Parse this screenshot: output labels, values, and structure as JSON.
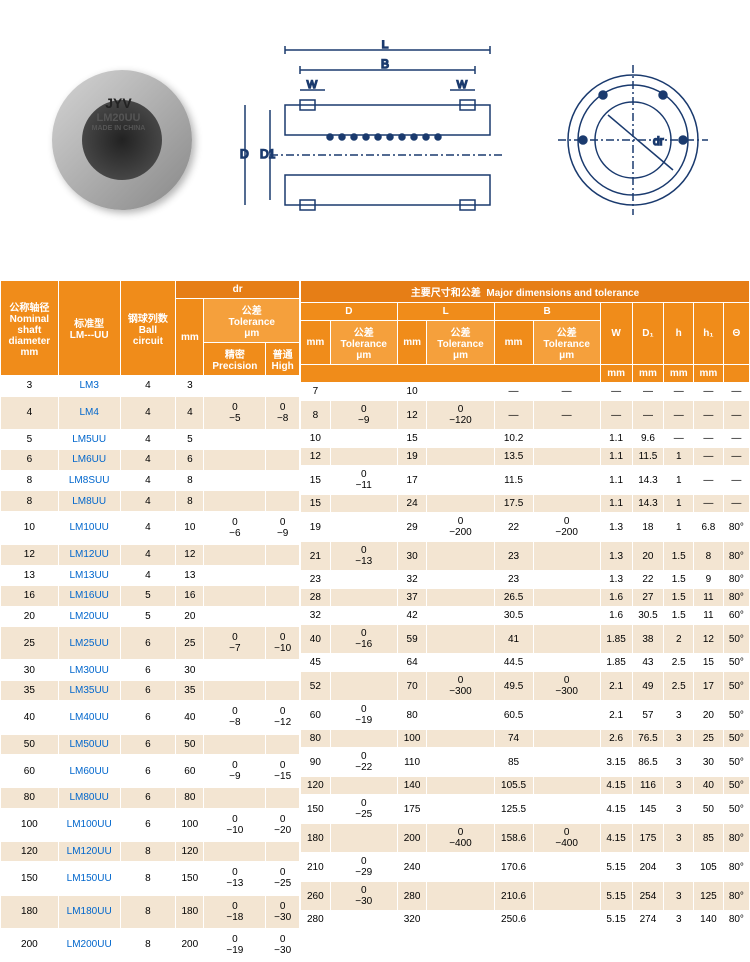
{
  "colors": {
    "header_orange": "#f08c1a",
    "header_orange2": "#e67e16",
    "header_orange3": "#f5a03c",
    "row_even": "#ffffff",
    "row_odd": "#f3e5d2",
    "text": "#333333",
    "link_blue": "#0066cc"
  },
  "product": {
    "brand": "JYV",
    "model": "LM20UU",
    "origin": "MADE IN CHINA"
  },
  "diagram_labels": {
    "L": "L",
    "B": "B",
    "W": "W",
    "D": "D",
    "D1": "D1",
    "dr": "dr"
  },
  "left_headers": {
    "col1_cn": "公称轴径",
    "col1_en1": "Nominal",
    "col1_en2": "shaft",
    "col1_en3": "diameter",
    "col1_unit": "mm",
    "col2_cn": "标准型",
    "col2_en": "LM---UU",
    "col3_cn": "钢球列数",
    "col3_en1": "Ball",
    "col3_en2": "circuit",
    "dr": "dr",
    "mm": "mm",
    "tolerance_cn": "公差",
    "tolerance_en": "Tolerance",
    "tolerance_unit": "μm",
    "precision_cn": "精密",
    "precision_en": "Precision",
    "high_cn": "普通",
    "high_en": "High"
  },
  "right_headers": {
    "title_cn": "主要尺寸和公差",
    "title_en": "Major dimensions and tolerance",
    "D": "D",
    "L": "L",
    "B": "B",
    "W": "W",
    "D1": "D₁",
    "h": "h",
    "h1": "h₁",
    "theta": "Θ",
    "mm": "mm",
    "tolerance_cn": "公差",
    "tolerance_en": "Tolerance",
    "tolerance_unit": "μm"
  },
  "rows": [
    {
      "d": "3",
      "model": "LM3",
      "ball": "4",
      "dr": "3",
      "prec": "",
      "high": "",
      "D": "7",
      "Dtol": "",
      "L": "10",
      "Ltol": "",
      "B": "—",
      "Btol": "—",
      "W": "—",
      "D1": "—",
      "h": "—",
      "h1": "—",
      "th": "—"
    },
    {
      "d": "4",
      "model": "LM4",
      "ball": "4",
      "dr": "4",
      "prec": "0\n−5",
      "high": "0\n−8",
      "D": "8",
      "Dtol": "0\n−9",
      "L": "12",
      "Ltol": "0\n−120",
      "B": "—",
      "Btol": "—",
      "W": "—",
      "D1": "—",
      "h": "—",
      "h1": "—",
      "th": "—"
    },
    {
      "d": "5",
      "model": "LM5UU",
      "ball": "4",
      "dr": "5",
      "prec": "",
      "high": "",
      "D": "10",
      "Dtol": "",
      "L": "15",
      "Ltol": "",
      "B": "10.2",
      "Btol": "",
      "W": "1.1",
      "D1": "9.6",
      "h": "—",
      "h1": "—",
      "th": "—"
    },
    {
      "d": "6",
      "model": "LM6UU",
      "ball": "4",
      "dr": "6",
      "prec": "",
      "high": "",
      "D": "12",
      "Dtol": "",
      "L": "19",
      "Ltol": "",
      "B": "13.5",
      "Btol": "",
      "W": "1.1",
      "D1": "11.5",
      "h": "1",
      "h1": "—",
      "th": "—"
    },
    {
      "d": "8",
      "model": "LM8SUU",
      "ball": "4",
      "dr": "8",
      "prec": "",
      "high": "",
      "D": "15",
      "Dtol": "0\n−11",
      "L": "17",
      "Ltol": "",
      "B": "11.5",
      "Btol": "",
      "W": "1.1",
      "D1": "14.3",
      "h": "1",
      "h1": "—",
      "th": "—"
    },
    {
      "d": "8",
      "model": "LM8UU",
      "ball": "4",
      "dr": "8",
      "prec": "",
      "high": "",
      "D": "15",
      "Dtol": "",
      "L": "24",
      "Ltol": "",
      "B": "17.5",
      "Btol": "",
      "W": "1.1",
      "D1": "14.3",
      "h": "1",
      "h1": "—",
      "th": "—"
    },
    {
      "d": "10",
      "model": "LM10UU",
      "ball": "4",
      "dr": "10",
      "prec": "0\n−6",
      "high": "0\n−9",
      "D": "19",
      "Dtol": "",
      "L": "29",
      "Ltol": "0\n−200",
      "B": "22",
      "Btol": "0\n−200",
      "W": "1.3",
      "D1": "18",
      "h": "1",
      "h1": "6.8",
      "th": "80°"
    },
    {
      "d": "12",
      "model": "LM12UU",
      "ball": "4",
      "dr": "12",
      "prec": "",
      "high": "",
      "D": "21",
      "Dtol": "0\n−13",
      "L": "30",
      "Ltol": "",
      "B": "23",
      "Btol": "",
      "W": "1.3",
      "D1": "20",
      "h": "1.5",
      "h1": "8",
      "th": "80°"
    },
    {
      "d": "13",
      "model": "LM13UU",
      "ball": "4",
      "dr": "13",
      "prec": "",
      "high": "",
      "D": "23",
      "Dtol": "",
      "L": "32",
      "Ltol": "",
      "B": "23",
      "Btol": "",
      "W": "1.3",
      "D1": "22",
      "h": "1.5",
      "h1": "9",
      "th": "80°"
    },
    {
      "d": "16",
      "model": "LM16UU",
      "ball": "5",
      "dr": "16",
      "prec": "",
      "high": "",
      "D": "28",
      "Dtol": "",
      "L": "37",
      "Ltol": "",
      "B": "26.5",
      "Btol": "",
      "W": "1.6",
      "D1": "27",
      "h": "1.5",
      "h1": "11",
      "th": "80°"
    },
    {
      "d": "20",
      "model": "LM20UU",
      "ball": "5",
      "dr": "20",
      "prec": "",
      "high": "",
      "D": "32",
      "Dtol": "",
      "L": "42",
      "Ltol": "",
      "B": "30.5",
      "Btol": "",
      "W": "1.6",
      "D1": "30.5",
      "h": "1.5",
      "h1": "11",
      "th": "60°"
    },
    {
      "d": "25",
      "model": "LM25UU",
      "ball": "6",
      "dr": "25",
      "prec": "0\n−7",
      "high": "0\n−10",
      "D": "40",
      "Dtol": "0\n−16",
      "L": "59",
      "Ltol": "",
      "B": "41",
      "Btol": "",
      "W": "1.85",
      "D1": "38",
      "h": "2",
      "h1": "12",
      "th": "50°"
    },
    {
      "d": "30",
      "model": "LM30UU",
      "ball": "6",
      "dr": "30",
      "prec": "",
      "high": "",
      "D": "45",
      "Dtol": "",
      "L": "64",
      "Ltol": "",
      "B": "44.5",
      "Btol": "",
      "W": "1.85",
      "D1": "43",
      "h": "2.5",
      "h1": "15",
      "th": "50°"
    },
    {
      "d": "35",
      "model": "LM35UU",
      "ball": "6",
      "dr": "35",
      "prec": "",
      "high": "",
      "D": "52",
      "Dtol": "",
      "L": "70",
      "Ltol": "0\n−300",
      "B": "49.5",
      "Btol": "0\n−300",
      "W": "2.1",
      "D1": "49",
      "h": "2.5",
      "h1": "17",
      "th": "50°"
    },
    {
      "d": "40",
      "model": "LM40UU",
      "ball": "6",
      "dr": "40",
      "prec": "0\n−8",
      "high": "0\n−12",
      "D": "60",
      "Dtol": "0\n−19",
      "L": "80",
      "Ltol": "",
      "B": "60.5",
      "Btol": "",
      "W": "2.1",
      "D1": "57",
      "h": "3",
      "h1": "20",
      "th": "50°"
    },
    {
      "d": "50",
      "model": "LM50UU",
      "ball": "6",
      "dr": "50",
      "prec": "",
      "high": "",
      "D": "80",
      "Dtol": "",
      "L": "100",
      "Ltol": "",
      "B": "74",
      "Btol": "",
      "W": "2.6",
      "D1": "76.5",
      "h": "3",
      "h1": "25",
      "th": "50°"
    },
    {
      "d": "60",
      "model": "LM60UU",
      "ball": "6",
      "dr": "60",
      "prec": "0\n−9",
      "high": "0\n−15",
      "D": "90",
      "Dtol": "0\n−22",
      "L": "110",
      "Ltol": "",
      "B": "85",
      "Btol": "",
      "W": "3.15",
      "D1": "86.5",
      "h": "3",
      "h1": "30",
      "th": "50°"
    },
    {
      "d": "80",
      "model": "LM80UU",
      "ball": "6",
      "dr": "80",
      "prec": "",
      "high": "",
      "D": "120",
      "Dtol": "",
      "L": "140",
      "Ltol": "",
      "B": "105.5",
      "Btol": "",
      "W": "4.15",
      "D1": "116",
      "h": "3",
      "h1": "40",
      "th": "50°"
    },
    {
      "d": "100",
      "model": "LM100UU",
      "ball": "6",
      "dr": "100",
      "prec": "0\n−10",
      "high": "0\n−20",
      "D": "150",
      "Dtol": "0\n−25",
      "L": "175",
      "Ltol": "",
      "B": "125.5",
      "Btol": "",
      "W": "4.15",
      "D1": "145",
      "h": "3",
      "h1": "50",
      "th": "50°"
    },
    {
      "d": "120",
      "model": "LM120UU",
      "ball": "8",
      "dr": "120",
      "prec": "",
      "high": "",
      "D": "180",
      "Dtol": "",
      "L": "200",
      "Ltol": "0\n−400",
      "B": "158.6",
      "Btol": "0\n−400",
      "W": "4.15",
      "D1": "175",
      "h": "3",
      "h1": "85",
      "th": "80°"
    },
    {
      "d": "150",
      "model": "LM150UU",
      "ball": "8",
      "dr": "150",
      "prec": "0\n−13",
      "high": "0\n−25",
      "D": "210",
      "Dtol": "0\n−29",
      "L": "240",
      "Ltol": "",
      "B": "170.6",
      "Btol": "",
      "W": "5.15",
      "D1": "204",
      "h": "3",
      "h1": "105",
      "th": "80°"
    },
    {
      "d": "180",
      "model": "LM180UU",
      "ball": "8",
      "dr": "180",
      "prec": "0\n−18",
      "high": "0\n−30",
      "D": "260",
      "Dtol": "0\n−30",
      "L": "280",
      "Ltol": "",
      "B": "210.6",
      "Btol": "",
      "W": "5.15",
      "D1": "254",
      "h": "3",
      "h1": "125",
      "th": "80°"
    },
    {
      "d": "200",
      "model": "LM200UU",
      "ball": "8",
      "dr": "200",
      "prec": "0\n−19",
      "high": "0\n−30",
      "D": "280",
      "Dtol": "",
      "L": "320",
      "Ltol": "",
      "B": "250.6",
      "Btol": "",
      "W": "5.15",
      "D1": "274",
      "h": "3",
      "h1": "140",
      "th": "80°"
    }
  ]
}
